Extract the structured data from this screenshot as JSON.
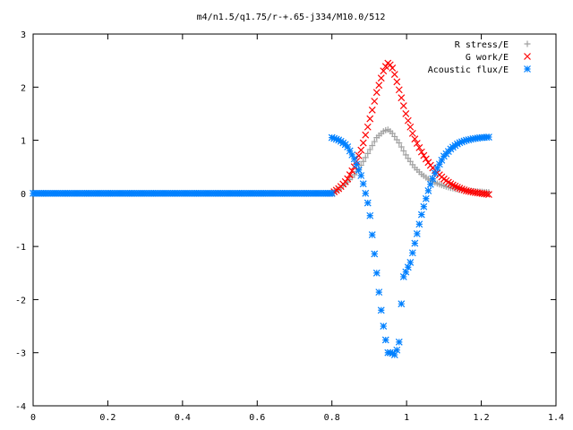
{
  "chart_data": {
    "type": "scatter",
    "title": "m4/n1.5/q1.75/r-+.65-j334/M10.0/512",
    "xlabel": "",
    "ylabel": "",
    "xlim": [
      0,
      1.4
    ],
    "ylim": [
      -4,
      3
    ],
    "x_ticks": [
      0,
      0.2,
      0.4,
      0.6,
      0.8,
      1,
      1.2,
      1.4
    ],
    "x_tick_labels": [
      "0",
      "0.2",
      "0.4",
      "0.6",
      "0.8",
      "1",
      "1.2",
      "1.4"
    ],
    "y_ticks": [
      -4,
      -3,
      -2,
      -1,
      0,
      1,
      2,
      3
    ],
    "y_tick_labels": [
      "-4",
      "-3",
      "-2",
      "-1",
      "0",
      "1",
      "2",
      "3"
    ],
    "grid": false,
    "legend_position": "top-right",
    "series": [
      {
        "name": "R stress/E",
        "marker": "plus",
        "color": "#a0a0a0",
        "x": [
          0.8,
          0.82,
          0.84,
          0.86,
          0.88,
          0.9,
          0.92,
          0.94,
          0.95,
          0.96,
          0.98,
          1.0,
          1.02,
          1.04,
          1.06,
          1.08,
          1.1,
          1.12,
          1.14,
          1.16,
          1.18,
          1.2,
          1.22
        ],
        "y": [
          0.0,
          0.08,
          0.2,
          0.35,
          0.55,
          0.8,
          1.05,
          1.18,
          1.2,
          1.15,
          0.95,
          0.7,
          0.5,
          0.36,
          0.26,
          0.19,
          0.14,
          0.1,
          0.07,
          0.05,
          0.04,
          0.03,
          0.02
        ]
      },
      {
        "name": "G work/E",
        "marker": "cross",
        "color": "#ff0000",
        "x": [
          0.8,
          0.82,
          0.84,
          0.86,
          0.88,
          0.9,
          0.92,
          0.94,
          0.95,
          0.96,
          0.97,
          0.98,
          1.0,
          1.02,
          1.04,
          1.06,
          1.08,
          1.1,
          1.12,
          1.14,
          1.16,
          1.18,
          1.2,
          1.22
        ],
        "y": [
          0.0,
          0.1,
          0.25,
          0.5,
          0.85,
          1.35,
          1.9,
          2.35,
          2.45,
          2.4,
          2.2,
          1.95,
          1.45,
          1.05,
          0.78,
          0.56,
          0.4,
          0.27,
          0.17,
          0.1,
          0.05,
          0.02,
          0.0,
          -0.02
        ]
      },
      {
        "name": "Acoustic flux/E",
        "marker": "star",
        "color": "#0080ff",
        "x": [
          0.8,
          0.82,
          0.84,
          0.86,
          0.88,
          0.9,
          0.91,
          0.92,
          0.93,
          0.94,
          0.95,
          0.96,
          0.97,
          0.98,
          0.99,
          1.0,
          1.01,
          1.02,
          1.04,
          1.06,
          1.08,
          1.1,
          1.12,
          1.14,
          1.16,
          1.18,
          1.2,
          1.22
        ],
        "y": [
          1.05,
          1.0,
          0.9,
          0.65,
          0.3,
          -0.3,
          -0.9,
          -1.5,
          -2.1,
          -2.6,
          -3.0,
          -3.0,
          -3.05,
          -2.8,
          -1.6,
          -1.45,
          -1.3,
          -1.0,
          -0.4,
          0.1,
          0.45,
          0.7,
          0.85,
          0.95,
          1.0,
          1.03,
          1.05,
          1.06
        ]
      }
    ]
  }
}
